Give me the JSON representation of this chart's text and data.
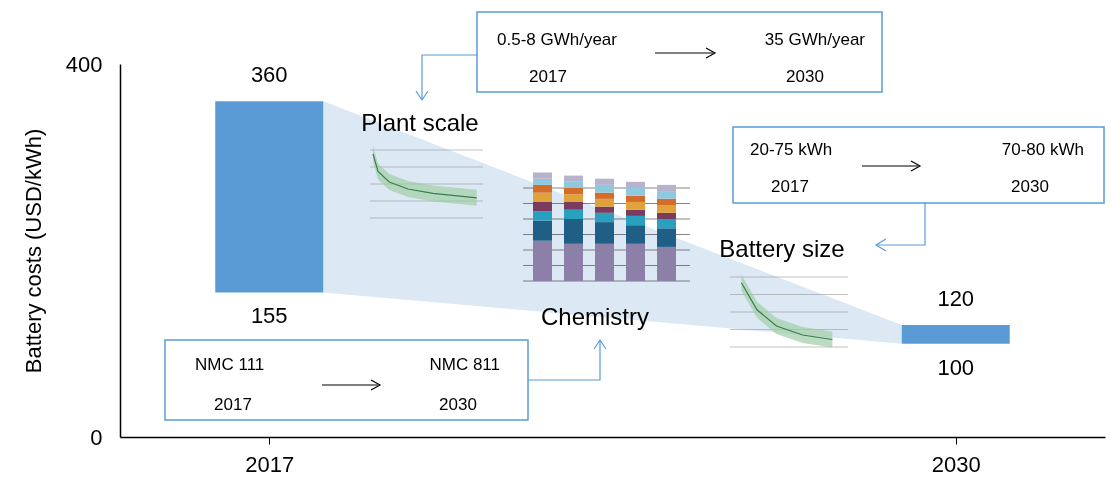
{
  "chart_data": {
    "type": "bar",
    "ylabel": "Battery costs (USD/kWh)",
    "categories": [
      "2017",
      "2030"
    ],
    "values": [
      205,
      20
    ],
    "base": [
      155,
      100
    ],
    "color": "#5b9bd5",
    "ylim": [
      0,
      400
    ],
    "yticks": [
      0,
      400
    ],
    "grid": false,
    "annotations": [
      {
        "text": "360",
        "x": "2017",
        "y": 360
      },
      {
        "text": "155",
        "x": "2017",
        "y": 155
      },
      {
        "text": "120",
        "x": "2030",
        "y": 120
      },
      {
        "text": "100",
        "x": "2030",
        "y": 100
      },
      "0.5-8 GWh/year",
      "35 GWh/year",
      "2017",
      "2030",
      "Plant scale",
      "20-75 kWh",
      "70-80 kWh",
      "2017",
      "2030",
      "Battery size",
      "NMC 111",
      "NMC 811",
      "2017",
      "2030",
      "Chemistry"
    ]
  }
}
